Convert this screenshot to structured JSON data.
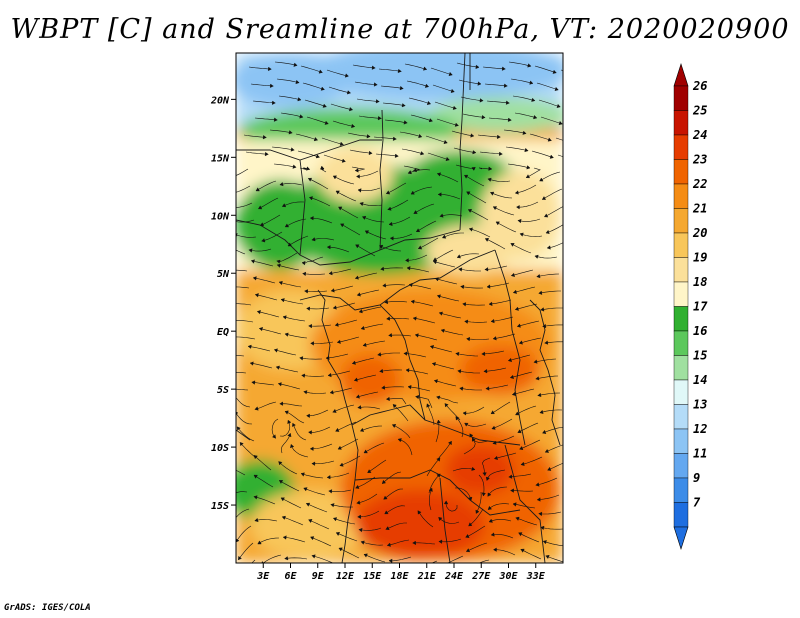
{
  "title": "WBPT [C] and Sreamline at 700hPa, VT: 2020020900",
  "credit": "GrADS: IGES/COLA",
  "map": {
    "lon_range": [
      0,
      36
    ],
    "lat_range": [
      -20,
      24
    ],
    "lon_ticks": [
      {
        "value": 3,
        "label": "3E"
      },
      {
        "value": 6,
        "label": "6E"
      },
      {
        "value": 9,
        "label": "9E"
      },
      {
        "value": 12,
        "label": "12E"
      },
      {
        "value": 15,
        "label": "15E"
      },
      {
        "value": 18,
        "label": "18E"
      },
      {
        "value": 21,
        "label": "21E"
      },
      {
        "value": 24,
        "label": "24E"
      },
      {
        "value": 27,
        "label": "27E"
      },
      {
        "value": 30,
        "label": "30E"
      },
      {
        "value": 33,
        "label": "33E"
      }
    ],
    "lat_ticks": [
      {
        "value": 20,
        "label": "20N"
      },
      {
        "value": 15,
        "label": "15N"
      },
      {
        "value": 10,
        "label": "10N"
      },
      {
        "value": 5,
        "label": "5N"
      },
      {
        "value": 0,
        "label": "EQ"
      },
      {
        "value": -5,
        "label": "5S"
      },
      {
        "value": -10,
        "label": "10S"
      },
      {
        "value": -15,
        "label": "15S"
      }
    ],
    "variable": "wet-bulb potential temperature",
    "overlay": "streamlines"
  },
  "colorbar": {
    "labels": [
      "26",
      "25",
      "24",
      "23",
      "22",
      "21",
      "20",
      "19",
      "18",
      "17",
      "16",
      "15",
      "14",
      "13",
      "12",
      "11",
      "9",
      "7"
    ],
    "colors": [
      "#a00000",
      "#c81400",
      "#e63c00",
      "#f06400",
      "#f58c14",
      "#f5a830",
      "#f8c65a",
      "#fbe09a",
      "#fff5c8",
      "#30b030",
      "#5cc85c",
      "#a0e0a0",
      "#e0f8f8",
      "#b4dcf8",
      "#8cc4f4",
      "#64a8f0",
      "#3c8ce8",
      "#1e6ee0"
    ],
    "top_arrow_color": "#a00000",
    "bottom_arrow_color": "#1e6ee0"
  }
}
